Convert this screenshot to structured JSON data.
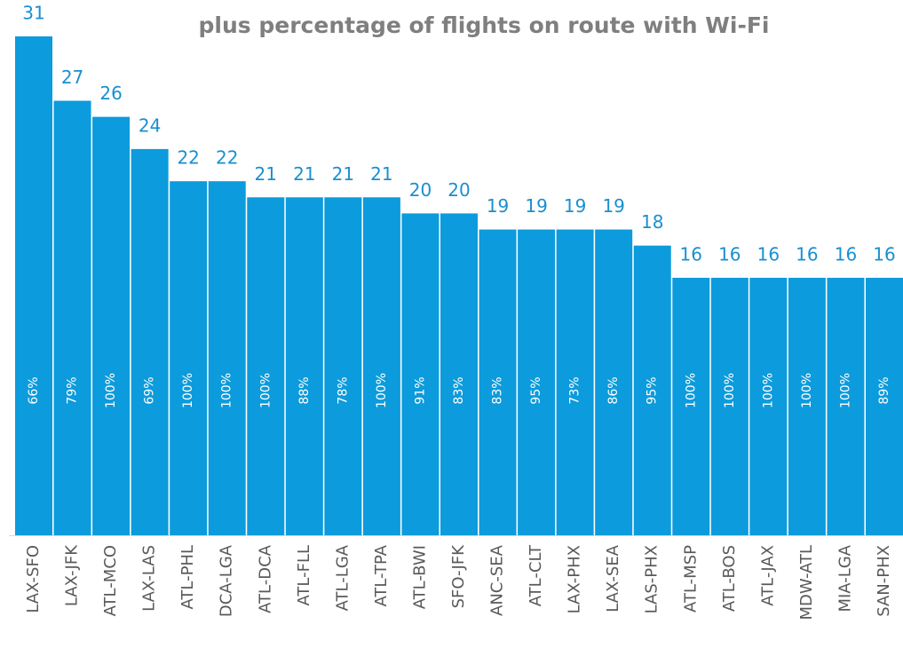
{
  "chart_data": {
    "type": "bar",
    "title": "plus percentage of flights on route with Wi-Fi",
    "categories": [
      "LAX-SFO",
      "LAX-JFK",
      "ATL-MCO",
      "LAX-LAS",
      "ATL-PHL",
      "DCA-LGA",
      "ATL-DCA",
      "ATL-FLL",
      "ATL-LGA",
      "ATL-TPA",
      "ATL-BWI",
      "SFO-JFK",
      "ANC-SEA",
      "ATL-CLT",
      "LAX-PHX",
      "LAX-SEA",
      "LAS-PHX",
      "ATL-MSP",
      "ATL-BOS",
      "ATL-JAX",
      "MDW-ATL",
      "MIA-LGA",
      "SAN-PHX"
    ],
    "values": [
      31,
      27,
      26,
      24,
      22,
      22,
      21,
      21,
      21,
      21,
      20,
      20,
      19,
      19,
      19,
      19,
      18,
      16,
      16,
      16,
      16,
      16,
      16
    ],
    "bar_labels": [
      "66%",
      "79%",
      "100%",
      "69%",
      "100%",
      "100%",
      "100%",
      "88%",
      "78%",
      "100%",
      "91%",
      "83%",
      "83%",
      "95%",
      "73%",
      "86%",
      "95%",
      "100%",
      "100%",
      "100%",
      "100%",
      "100%",
      "89%"
    ],
    "color": "#0c9bdc",
    "ylim": [
      0,
      31
    ]
  }
}
